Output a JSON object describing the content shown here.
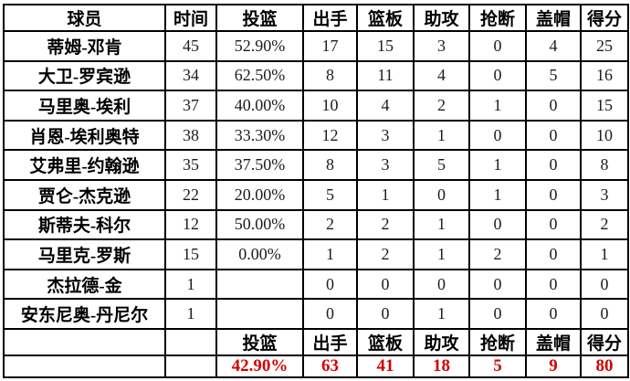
{
  "colors": {
    "totals_text": "#d30000",
    "grid_line": "#000000",
    "text": "#000000",
    "background": "#ffffff"
  },
  "table": {
    "columns": [
      "球员",
      "时间",
      "投篮",
      "出手",
      "篮板",
      "助攻",
      "抢断",
      "盖帽",
      "得分"
    ],
    "rows": [
      [
        "蒂姆-邓肯",
        "45",
        "52.90%",
        "17",
        "15",
        "3",
        "0",
        "4",
        "25"
      ],
      [
        "大卫-罗宾逊",
        "34",
        "62.50%",
        "8",
        "11",
        "4",
        "0",
        "5",
        "16"
      ],
      [
        "马里奥-埃利",
        "37",
        "40.00%",
        "10",
        "4",
        "2",
        "1",
        "0",
        "15"
      ],
      [
        "肖恩-埃利奥特",
        "38",
        "33.30%",
        "12",
        "3",
        "1",
        "0",
        "0",
        "10"
      ],
      [
        "艾弗里-约翰逊",
        "35",
        "37.50%",
        "8",
        "3",
        "5",
        "1",
        "0",
        "8"
      ],
      [
        "贾仑-杰克逊",
        "22",
        "20.00%",
        "5",
        "1",
        "0",
        "1",
        "0",
        "3"
      ],
      [
        "斯蒂夫-科尔",
        "12",
        "50.00%",
        "2",
        "2",
        "1",
        "0",
        "0",
        "2"
      ],
      [
        "马里克-罗斯",
        "15",
        "0.00%",
        "1",
        "2",
        "1",
        "2",
        "0",
        "1"
      ],
      [
        "杰拉德-金",
        "1",
        "",
        "0",
        "0",
        "0",
        "0",
        "0",
        "0"
      ],
      [
        "安东尼奥-丹尼尔",
        "1",
        "",
        "0",
        "0",
        "1",
        "0",
        "0",
        "0"
      ]
    ],
    "footer_labels": [
      "",
      "",
      "投篮",
      "出手",
      "篮板",
      "助攻",
      "抢断",
      "盖帽",
      "得分"
    ],
    "totals": [
      "",
      "",
      "42.90%",
      "63",
      "41",
      "18",
      "5",
      "9",
      "80"
    ]
  },
  "chart_data": {
    "type": "table",
    "title": "",
    "columns": [
      "球员",
      "时间",
      "投篮",
      "出手",
      "篮板",
      "助攻",
      "抢断",
      "盖帽",
      "得分"
    ],
    "column_meanings": [
      "player",
      "minutes",
      "fg_pct",
      "shots_attempted",
      "rebounds",
      "assists",
      "steals",
      "blocks",
      "points"
    ],
    "rows": [
      {
        "player": "蒂姆-邓肯",
        "minutes": 45,
        "fg_pct": "52.90%",
        "shots_attempted": 17,
        "rebounds": 15,
        "assists": 3,
        "steals": 0,
        "blocks": 4,
        "points": 25
      },
      {
        "player": "大卫-罗宾逊",
        "minutes": 34,
        "fg_pct": "62.50%",
        "shots_attempted": 8,
        "rebounds": 11,
        "assists": 4,
        "steals": 0,
        "blocks": 5,
        "points": 16
      },
      {
        "player": "马里奥-埃利",
        "minutes": 37,
        "fg_pct": "40.00%",
        "shots_attempted": 10,
        "rebounds": 4,
        "assists": 2,
        "steals": 1,
        "blocks": 0,
        "points": 15
      },
      {
        "player": "肖恩-埃利奥特",
        "minutes": 38,
        "fg_pct": "33.30%",
        "shots_attempted": 12,
        "rebounds": 3,
        "assists": 1,
        "steals": 0,
        "blocks": 0,
        "points": 10
      },
      {
        "player": "艾弗里-约翰逊",
        "minutes": 35,
        "fg_pct": "37.50%",
        "shots_attempted": 8,
        "rebounds": 3,
        "assists": 5,
        "steals": 1,
        "blocks": 0,
        "points": 8
      },
      {
        "player": "贾仑-杰克逊",
        "minutes": 22,
        "fg_pct": "20.00%",
        "shots_attempted": 5,
        "rebounds": 1,
        "assists": 0,
        "steals": 1,
        "blocks": 0,
        "points": 3
      },
      {
        "player": "斯蒂夫-科尔",
        "minutes": 12,
        "fg_pct": "50.00%",
        "shots_attempted": 2,
        "rebounds": 2,
        "assists": 1,
        "steals": 0,
        "blocks": 0,
        "points": 2
      },
      {
        "player": "马里克-罗斯",
        "minutes": 15,
        "fg_pct": "0.00%",
        "shots_attempted": 1,
        "rebounds": 2,
        "assists": 1,
        "steals": 2,
        "blocks": 0,
        "points": 1
      },
      {
        "player": "杰拉德-金",
        "minutes": 1,
        "fg_pct": null,
        "shots_attempted": 0,
        "rebounds": 0,
        "assists": 0,
        "steals": 0,
        "blocks": 0,
        "points": 0
      },
      {
        "player": "安东尼奥-丹尼尔",
        "minutes": 1,
        "fg_pct": null,
        "shots_attempted": 0,
        "rebounds": 0,
        "assists": 1,
        "steals": 0,
        "blocks": 0,
        "points": 0
      }
    ],
    "team_totals": {
      "fg_pct": "42.90%",
      "shots_attempted": 63,
      "rebounds": 41,
      "assists": 18,
      "steals": 5,
      "blocks": 9,
      "points": 80
    },
    "layout": {
      "grid": true,
      "totals_row_color": "#d30000",
      "header_bold": true
    }
  }
}
